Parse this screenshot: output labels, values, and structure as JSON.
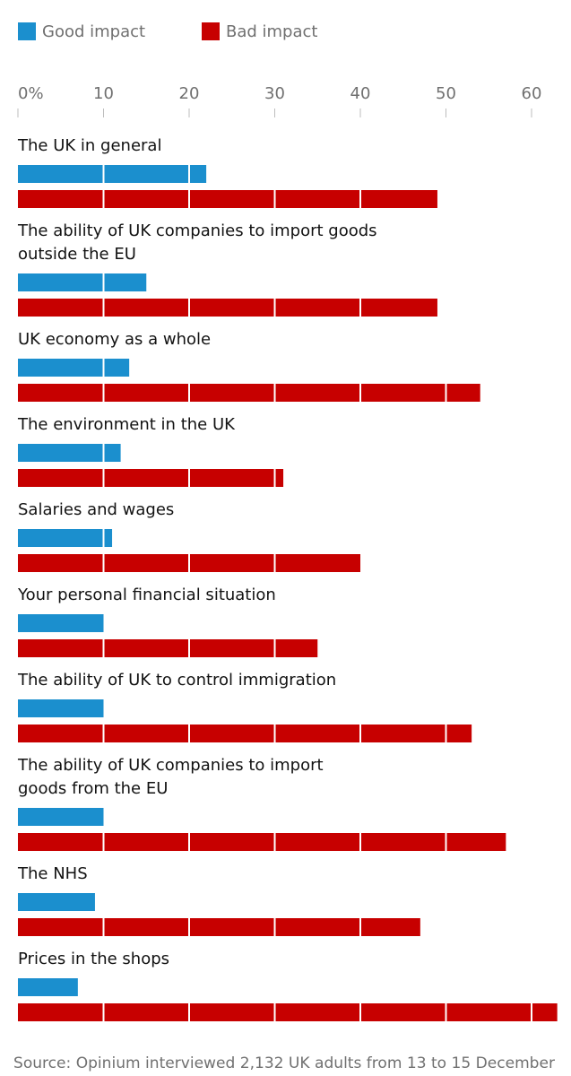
{
  "chart_data": {
    "type": "bar",
    "orientation": "horizontal",
    "legend": {
      "placement": "top-left",
      "items": [
        {
          "label": "Good impact",
          "color": "#1b8fce"
        },
        {
          "label": "Bad impact",
          "color": "#c70000"
        }
      ]
    },
    "x_axis": {
      "ticks": [
        "0%",
        "10",
        "20",
        "30",
        "40",
        "50",
        "60"
      ],
      "tick_values": [
        0,
        10,
        20,
        30,
        40,
        50,
        60
      ],
      "range": [
        0,
        63
      ]
    },
    "categories": [
      [
        "The UK in general"
      ],
      [
        "The ability of UK companies to import goods",
        "outside the EU"
      ],
      [
        "UK economy as a whole"
      ],
      [
        "The environment in the UK"
      ],
      [
        "Salaries and wages"
      ],
      [
        "Your personal financial situation"
      ],
      [
        "The ability of UK to control immigration"
      ],
      [
        "The ability of UK companies to import",
        "goods from the EU"
      ],
      [
        "The NHS"
      ],
      [
        "Prices in the shops"
      ]
    ],
    "series": [
      {
        "name": "Good impact",
        "color": "#1b8fce",
        "values": [
          22,
          15,
          13,
          12,
          11,
          10,
          10,
          10,
          9,
          7
        ]
      },
      {
        "name": "Bad impact",
        "color": "#c70000",
        "values": [
          49,
          49,
          54,
          31,
          40,
          35,
          53,
          57,
          47,
          63
        ]
      }
    ],
    "gridlines_over_bars": true,
    "source": "Source: Opinium interviewed 2,132 UK adults from 13 to 15 December"
  }
}
